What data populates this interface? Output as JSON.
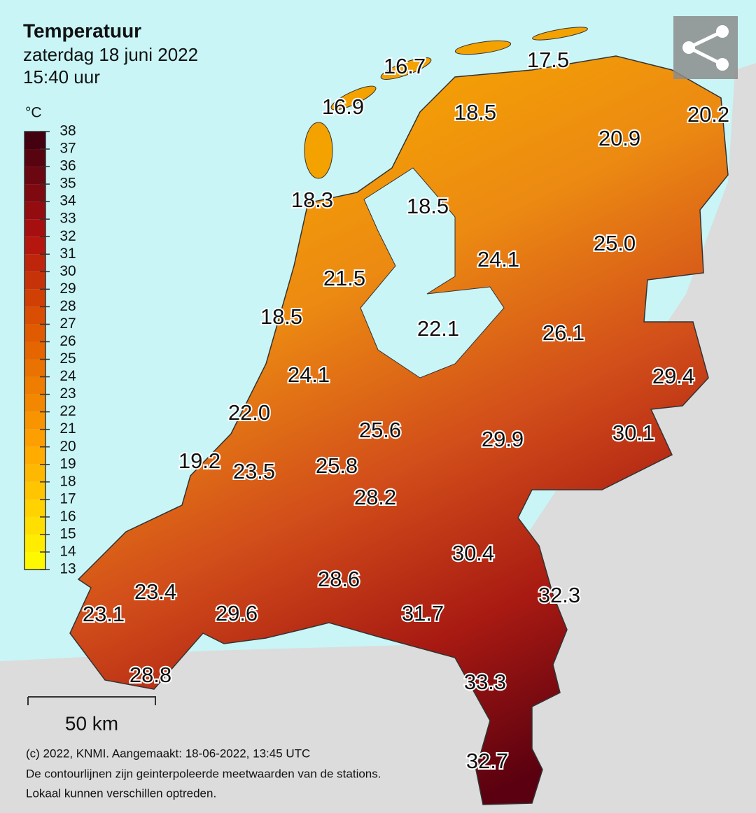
{
  "header": {
    "title": "Temperatuur",
    "date": "zaterdag 18 juni 2022",
    "time": "15:40 uur"
  },
  "legend": {
    "unit": "°C",
    "ticks": [
      13,
      14,
      15,
      16,
      17,
      18,
      19,
      20,
      21,
      22,
      23,
      24,
      25,
      26,
      27,
      28,
      29,
      30,
      31,
      32,
      33,
      34,
      35,
      36,
      37,
      38
    ]
  },
  "stations": [
    "16.7",
    "17.5",
    "16.9",
    "18.5",
    "20.2",
    "20.9",
    "18.3",
    "18.5",
    "25.0",
    "24.1",
    "21.5",
    "18.5",
    "22.1",
    "26.1",
    "29.4",
    "24.1",
    "22.0",
    "25.6",
    "29.9",
    "30.1",
    "19.2",
    "23.5",
    "25.8",
    "28.2",
    "30.4",
    "32.3",
    "28.6",
    "23.4",
    "23.1",
    "29.6",
    "31.7",
    "33.3",
    "28.8",
    "32.7"
  ],
  "scale": {
    "label": "50 km"
  },
  "footer": {
    "lines": [
      "(c) 2022, KNMI. Aangemaakt: 18-06-2022, 13:45 UTC",
      "De contourlijnen zijn geinterpoleerde meetwaarden van de stations.",
      "Lokaal kunnen verschillen optreden."
    ]
  }
}
